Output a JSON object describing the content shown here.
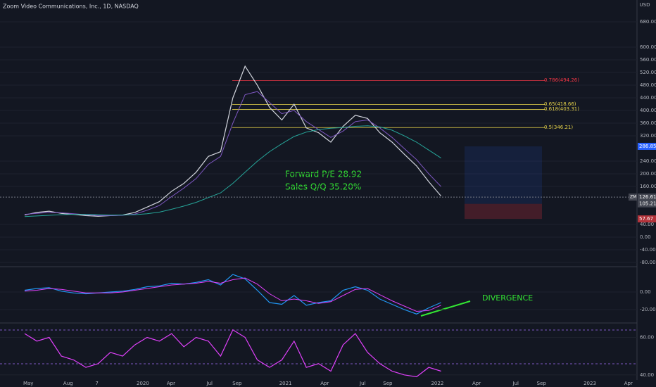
{
  "chart_data": [
    {
      "type": "line",
      "title": "Zoom Video Communications, Inc., 1D, NASDAQ",
      "currency": "USD",
      "x": [
        0,
        2,
        4,
        6,
        8,
        10,
        12,
        14,
        16,
        18,
        20,
        22,
        24,
        26,
        28,
        30,
        32,
        34,
        36,
        38,
        40,
        42,
        44,
        46,
        48,
        50,
        52,
        54,
        56,
        58,
        60,
        62,
        64,
        66,
        68
      ],
      "xlim": [
        0,
        100
      ],
      "series": [
        {
          "color": "#d1d4dc",
          "values": [
            70,
            78,
            82,
            75,
            72,
            68,
            66,
            68,
            70,
            78,
            95,
            112,
            145,
            170,
            205,
            255,
            270,
            440,
            540,
            480,
            410,
            370,
            420,
            345,
            330,
            300,
            350,
            385,
            375,
            330,
            300,
            262,
            225,
            175,
            130
          ]
        },
        {
          "color": "#7e57c2",
          "values": [
            72,
            75,
            78,
            77,
            74,
            71,
            68,
            68,
            69,
            73,
            85,
            100,
            128,
            155,
            185,
            230,
            255,
            360,
            450,
            460,
            425,
            390,
            400,
            365,
            340,
            315,
            335,
            365,
            370,
            345,
            315,
            280,
            245,
            200,
            160
          ]
        },
        {
          "color": "#26a69a",
          "values": [
            65,
            67,
            69,
            71,
            72,
            72,
            71,
            70,
            70,
            71,
            74,
            79,
            88,
            98,
            110,
            125,
            140,
            170,
            205,
            240,
            270,
            295,
            318,
            332,
            340,
            344,
            346,
            350,
            352,
            348,
            338,
            320,
            300,
            275,
            250
          ]
        }
      ],
      "ylim": [
        -91,
        749
      ],
      "yticks": [
        {
          "value": 680,
          "label": "680.00"
        },
        {
          "value": 600,
          "label": "600.00"
        },
        {
          "value": 560,
          "label": "560.00"
        },
        {
          "value": 520,
          "label": "520.00"
        },
        {
          "value": 480,
          "label": "480.00"
        },
        {
          "value": 440,
          "label": "440.00"
        },
        {
          "value": 400,
          "label": "400.00"
        },
        {
          "value": 360,
          "label": "360.00"
        },
        {
          "value": 320,
          "label": "320.00"
        },
        {
          "value": 240,
          "label": "240.00"
        },
        {
          "value": 200,
          "label": "200.00"
        },
        {
          "value": 160,
          "label": "160.00"
        },
        {
          "value": 40,
          "label": "40.00"
        },
        {
          "value": 0,
          "label": "0.00"
        },
        {
          "value": -40,
          "label": "-40.00"
        },
        {
          "value": -80,
          "label": "-80.00"
        }
      ],
      "fib_levels": [
        {
          "label": "0.786(494.26)",
          "value": 494.26,
          "color": "#f23645"
        },
        {
          "label": "0.65(418.66)",
          "value": 418.66,
          "color": "#e6d34a"
        },
        {
          "label": "0.618(403.31)",
          "value": 403.31,
          "color": "#e6d34a"
        },
        {
          "label": "0.5(346.21)",
          "value": 346.21,
          "color": "#e6d34a"
        }
      ],
      "price_labels": [
        {
          "label": "286.85",
          "value": 286.85,
          "color": "#2962ff"
        },
        {
          "label": "126.61",
          "value": 126.61,
          "color": "#434651"
        },
        {
          "label": "105.21",
          "value": 105.21,
          "color": "#434651"
        },
        {
          "label": "57.67",
          "value": 57.67,
          "color": "#b2323a"
        }
      ],
      "symbol": "ZM",
      "annotations": [
        "Forward P/E 28.92",
        "Sales Q/Q 35.20%"
      ]
    },
    {
      "type": "line",
      "x": [
        0,
        2,
        4,
        6,
        8,
        10,
        12,
        14,
        16,
        18,
        20,
        22,
        24,
        26,
        28,
        30,
        32,
        34,
        36,
        38,
        40,
        42,
        44,
        46,
        48,
        50,
        52,
        54,
        56,
        58,
        60,
        62,
        64,
        66,
        68
      ],
      "series": [
        {
          "color": "#2196f3",
          "values": [
            2,
            4,
            5,
            1,
            -1,
            -2,
            -1,
            0,
            1,
            3,
            6,
            7,
            10,
            9,
            11,
            14,
            8,
            20,
            15,
            2,
            -12,
            -14,
            -4,
            -15,
            -12,
            -10,
            2,
            6,
            2,
            -8,
            -14,
            -20,
            -25,
            -18,
            -12
          ]
        },
        {
          "color": "#e040fb",
          "values": [
            1,
            2,
            4,
            3,
            1,
            -1,
            -1,
            -1,
            0,
            2,
            4,
            6,
            8,
            9,
            10,
            12,
            10,
            14,
            16,
            9,
            -2,
            -10,
            -8,
            -10,
            -13,
            -11,
            -4,
            3,
            4,
            -3,
            -10,
            -16,
            -22,
            -21,
            -15
          ]
        }
      ],
      "ylim": [
        -34.4,
        28
      ],
      "yticks": [
        {
          "value": 0,
          "label": "0.00"
        },
        {
          "value": -20,
          "label": "-20.00"
        }
      ],
      "annotations": [
        "DIVERGENCE"
      ]
    },
    {
      "type": "line",
      "x": [
        0,
        2,
        4,
        6,
        8,
        10,
        12,
        14,
        16,
        18,
        20,
        22,
        24,
        26,
        28,
        30,
        32,
        34,
        36,
        38,
        40,
        42,
        44,
        46,
        48,
        50,
        52,
        54,
        56,
        58,
        60,
        62,
        64,
        66,
        68
      ],
      "series": [
        {
          "color": "#e040fb",
          "values": [
            62,
            58,
            60,
            50,
            48,
            44,
            46,
            52,
            50,
            56,
            60,
            58,
            62,
            55,
            60,
            58,
            50,
            64,
            60,
            48,
            44,
            48,
            58,
            44,
            46,
            42,
            56,
            62,
            52,
            46,
            42,
            40,
            39,
            44,
            42
          ]
        }
      ],
      "ylim": [
        37.3,
        67.3
      ],
      "yticks": [
        {
          "value": 60,
          "label": "60.00"
        },
        {
          "value": 40,
          "label": "40.00"
        }
      ],
      "xlim": [
        0,
        100
      ],
      "xticks": [
        {
          "value": 0.6,
          "label": "May"
        },
        {
          "value": 7.1,
          "label": "Aug"
        },
        {
          "value": 11.8,
          "label": "7"
        },
        {
          "value": 19.3,
          "label": "2020"
        },
        {
          "value": 23.9,
          "label": "Apr"
        },
        {
          "value": 30.2,
          "label": "Jul"
        },
        {
          "value": 34.7,
          "label": "Sep"
        },
        {
          "value": 42.6,
          "label": "2021"
        },
        {
          "value": 49.0,
          "label": "Apr"
        },
        {
          "value": 55.2,
          "label": "Jul"
        },
        {
          "value": 59.3,
          "label": "Sep"
        },
        {
          "value": 67.4,
          "label": "2022"
        },
        {
          "value": 73.8,
          "label": "Apr"
        },
        {
          "value": 80.2,
          "label": "Jul"
        },
        {
          "value": 84.4,
          "label": "Sep"
        },
        {
          "value": 92.3,
          "label": "2023"
        },
        {
          "value": 98.6,
          "label": "Apr"
        }
      ]
    }
  ]
}
